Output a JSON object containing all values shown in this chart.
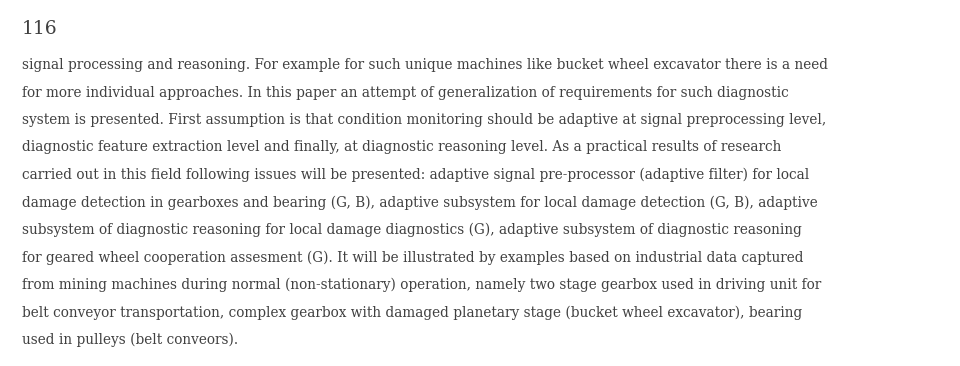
{
  "page_number": "116",
  "background_color": "#ffffff",
  "text_color": "#404040",
  "font_size": 9.8,
  "page_number_font_size": 13.5,
  "line1": "signal processing and reasoning. For example for such unique machines like bucket wheel excavator there is a need",
  "line2": "for more individual approaches. In this paper an attempt of generalization of requirements for such diagnostic",
  "line3": "system is presented. First assumption is that condition monitoring should be adaptive at signal preprocessing level,",
  "line4": "diagnostic feature extraction level and finally, at diagnostic reasoning level. As a practical results of research",
  "line5": "carried out in this field following issues will be presented: adaptive signal pre-processor (adaptive filter) for local",
  "line6": "damage detection in gearboxes and bearing (G, B), adaptive subsystem for local damage detection (G, B), adaptive",
  "line7": "subsystem of diagnostic reasoning for local damage diagnostics (G), adaptive subsystem of diagnostic reasoning",
  "line8": "for geared wheel cooperation assesment (G). It will be illustrated by examples based on industrial data captured",
  "line9": "from mining machines during normal (non-stationary) operation, namely two stage gearbox used in driving unit for",
  "line10": "belt conveyor transportation, complex gearbox with damaged planetary stage (bucket wheel excavator), bearing",
  "line11": "used in pulleys (belt conveors)."
}
